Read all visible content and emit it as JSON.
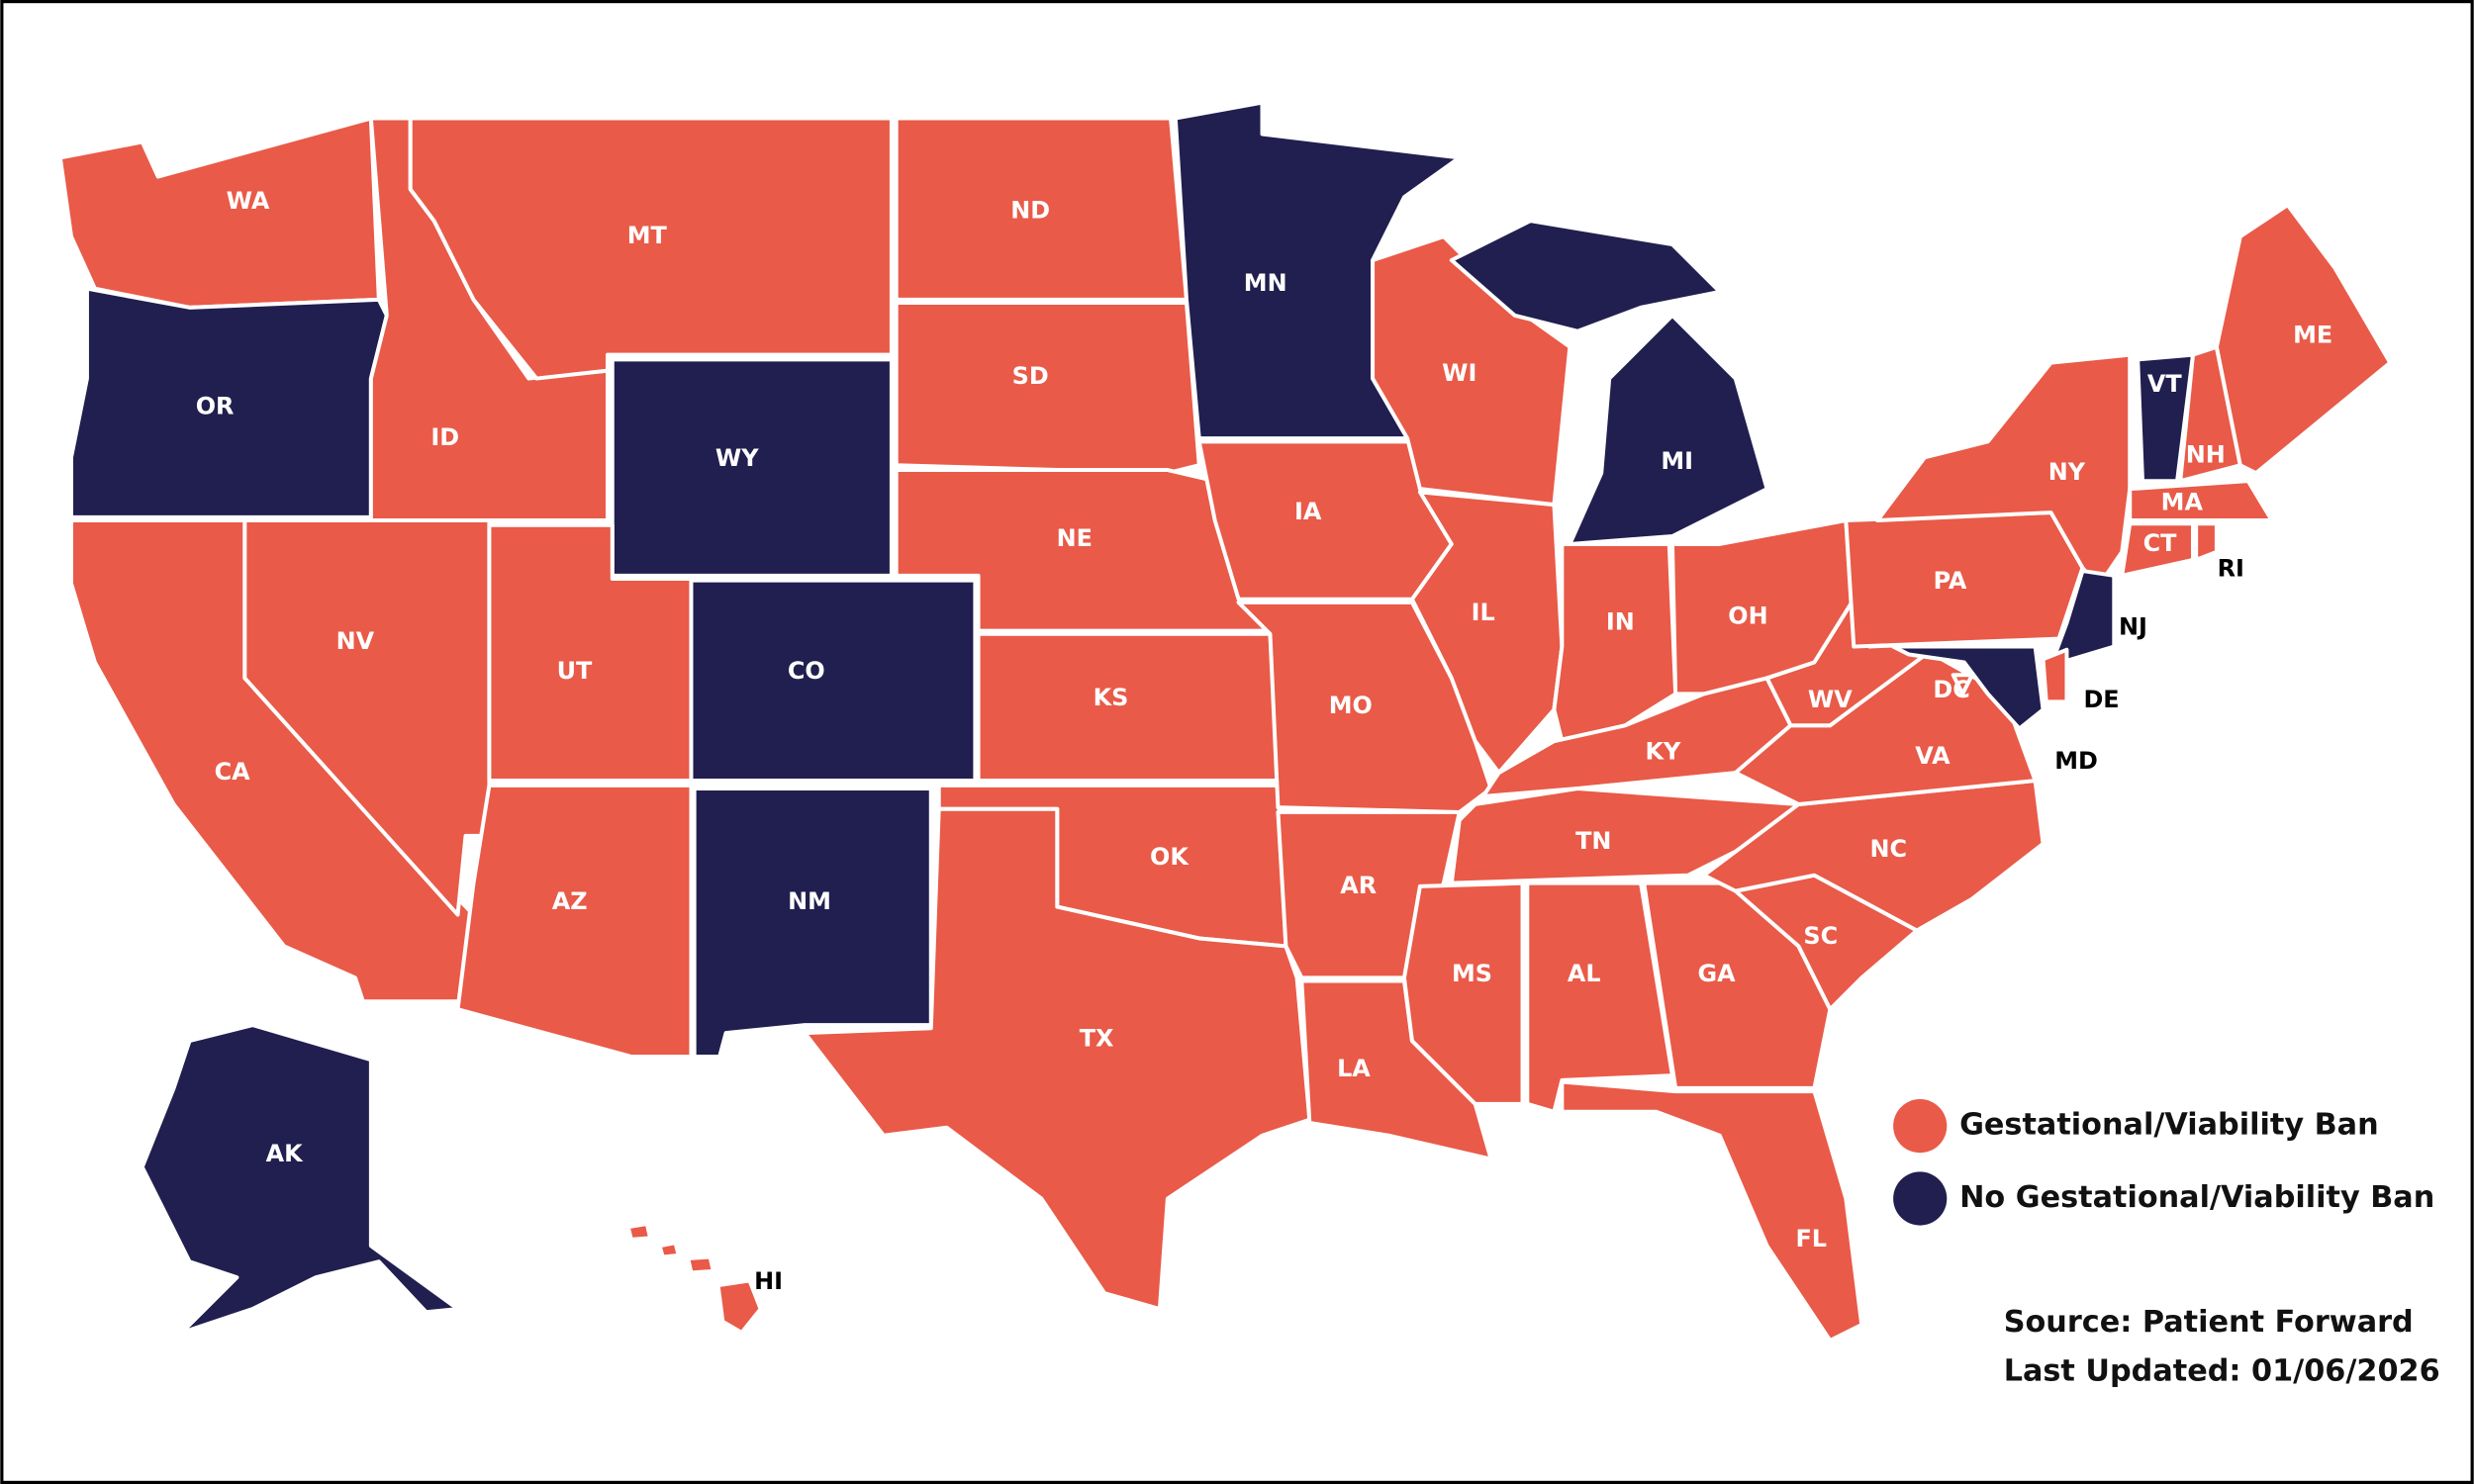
{
  "legend": {
    "items": [
      {
        "label": "Gestational/Viability Ban",
        "color": "#e95a48",
        "states": [
          "WA",
          "ID",
          "MT",
          "ND",
          "SD",
          "NE",
          "KS",
          "OK",
          "TX",
          "CA",
          "NV",
          "UT",
          "AZ",
          "IA",
          "MO",
          "AR",
          "LA",
          "WI",
          "IL",
          "IN",
          "OH",
          "KY",
          "TN",
          "MS",
          "AL",
          "GA",
          "FL",
          "SC",
          "NC",
          "VA",
          "WV",
          "PA",
          "NY",
          "NH",
          "ME",
          "MA",
          "CT",
          "RI",
          "DE",
          "DC",
          "HI"
        ]
      },
      {
        "label": "No Gestational/Viability Ban",
        "color": "#211f4f",
        "states": [
          "OR",
          "WY",
          "CO",
          "NM",
          "MN",
          "MI",
          "VT",
          "NJ",
          "MD",
          "AK"
        ]
      }
    ]
  },
  "source": "Source: Patient Forward",
  "last_updated": "Last Updated: 01/06/2026"
}
